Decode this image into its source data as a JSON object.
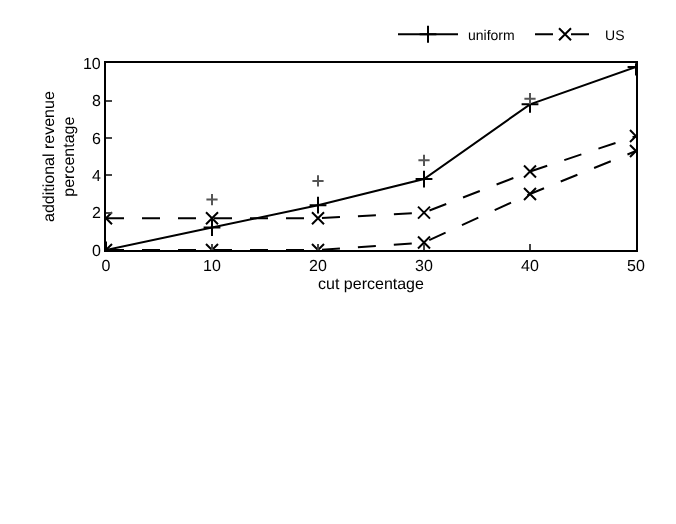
{
  "chart_data": {
    "type": "line",
    "xlabel": "cut percentage",
    "ylabel": "additional revenue\npercentage",
    "x": [
      0,
      10,
      20,
      30,
      40,
      50
    ],
    "xlim": [
      0,
      50
    ],
    "xticks": [
      0,
      10,
      20,
      30,
      40,
      50
    ],
    "ylim": [
      0,
      10
    ],
    "yticks": [
      0,
      2,
      4,
      6,
      8,
      10
    ],
    "legend": "top right",
    "series": [
      {
        "name": "uniform",
        "color": "#000000",
        "values": [
          0,
          1.2,
          2.4,
          3.8,
          7.8,
          9.8
        ],
        "marker": "cross",
        "line_style": "solid"
      },
      {
        "name": "US",
        "color": "#000000",
        "values": [
          1.7,
          1.7,
          1.7,
          2.0,
          4.2,
          6.1
        ],
        "marker": "x",
        "line_style": "dashed"
      },
      {
        "color": "#000000",
        "values": [
          0,
          0,
          0,
          0.4,
          3.0,
          5.3
        ],
        "marker": "x",
        "line_style": "dashed"
      },
      {
        "type": "scatter",
        "color": "#555555",
        "x": [
          10,
          20,
          30,
          40
        ],
        "values": [
          2.7,
          3.7,
          4.8,
          8.1
        ],
        "marker": "cross"
      }
    ]
  }
}
